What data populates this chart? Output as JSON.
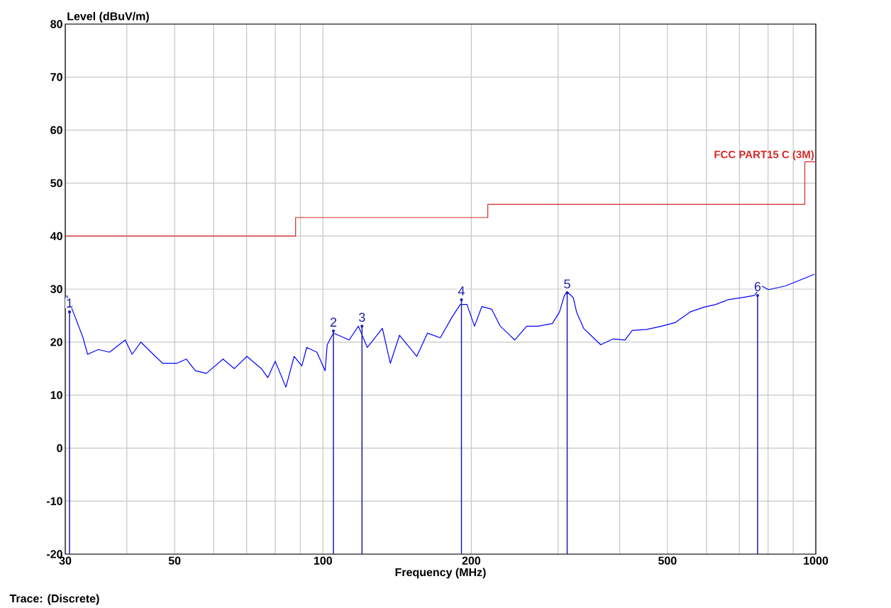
{
  "chart_data": {
    "type": "line",
    "xlabel": "Frequency (MHz)",
    "ylabel": "Level (dBuV/m)",
    "log": "x",
    "xlim": [
      30,
      1000
    ],
    "ylim": [
      -20,
      80
    ],
    "xticks": [
      30,
      {
        "value": 40,
        "label": null
      },
      50,
      {
        "value": 60,
        "label": null
      },
      {
        "value": 70,
        "label": null
      },
      {
        "value": 80,
        "label": null
      },
      {
        "value": 90,
        "label": null
      },
      100,
      200,
      {
        "value": 300,
        "label": null
      },
      {
        "value": 400,
        "label": null
      },
      500,
      {
        "value": 600,
        "label": null
      },
      {
        "value": 700,
        "label": null
      },
      {
        "value": 800,
        "label": null
      },
      {
        "value": 900,
        "label": null
      },
      1000
    ],
    "yticks": [
      -20,
      -10,
      0,
      10,
      20,
      30,
      40,
      50,
      60,
      70,
      80
    ],
    "grid": true,
    "marker": "none",
    "series": [
      {
        "color": "#0000ff",
        "x": [
          30.2,
          31.4,
          32.6,
          33.3,
          35.0,
          36.9,
          39.7,
          41.0,
          42.7,
          45.7,
          47.3,
          50.5,
          52.8,
          55.1,
          58.0,
          62.7,
          66.1,
          70.1,
          75.0,
          77.3,
          80.0,
          84.1,
          87.4,
          90.6,
          92.7,
          97.2,
          101,
          102,
          105,
          113,
          118,
          123,
          132,
          137,
          143,
          155,
          163,
          173,
          183,
          190,
          196,
          203,
          210,
          220,
          229,
          237,
          245,
          259,
          273,
          292,
          302,
          309,
          313,
          322,
          327,
          338,
          354,
          366,
          388,
          410,
          424,
          454,
          486,
          519,
          556,
          594,
          627,
          664,
          710,
          751,
          776,
          802,
          868,
          929,
          994
        ],
        "values": [
          28.8,
          24.8,
          20.8,
          17.7,
          18.6,
          18.1,
          20.4,
          17.7,
          20.0,
          17.3,
          16.0,
          16.0,
          16.8,
          14.6,
          14.1,
          16.8,
          15.0,
          17.3,
          15.0,
          13.3,
          16.4,
          11.5,
          17.3,
          15.5,
          19.0,
          18.1,
          14.6,
          19.5,
          21.7,
          20.4,
          23.0,
          19.0,
          22.6,
          16.0,
          21.3,
          17.3,
          21.7,
          20.8,
          24.8,
          27.1,
          27.1,
          23.0,
          26.7,
          26.2,
          23.0,
          21.7,
          20.4,
          23.0,
          23.0,
          23.5,
          25.7,
          28.8,
          29.5,
          28.4,
          25.7,
          22.6,
          20.8,
          19.5,
          20.6,
          20.4,
          22.2,
          22.4,
          23.0,
          23.7,
          25.7,
          26.6,
          27.1,
          28.0,
          28.4,
          28.8,
          30.6,
          29.9,
          30.6,
          31.7,
          32.8
        ]
      },
      {
        "type": "step",
        "name": "FCC PART15 C (3M)",
        "color": "#d42a2a",
        "x": [
          30,
          88,
          216,
          950,
          1000
        ],
        "values": [
          40,
          43.5,
          46,
          54,
          54
        ]
      },
      {
        "type": "lollipop",
        "color": "#1c1cb0",
        "x": [
          30.6,
          105,
          120,
          191,
          313,
          762
        ],
        "values": [
          25.7,
          22.1,
          23.0,
          28.0,
          29.3,
          28.8
        ]
      }
    ],
    "annotations": [
      {
        "text": "1",
        "x": 30.6,
        "y": 25.7
      },
      {
        "text": "2",
        "x": 105,
        "y": 22.1
      },
      {
        "text": "3",
        "x": 120,
        "y": 23.0
      },
      {
        "text": "4",
        "x": 191,
        "y": 28.0
      },
      {
        "text": "5",
        "x": 313,
        "y": 29.3
      },
      {
        "text": "6",
        "x": 762,
        "y": 28.8
      },
      "Trace: (Discrete)"
    ]
  }
}
